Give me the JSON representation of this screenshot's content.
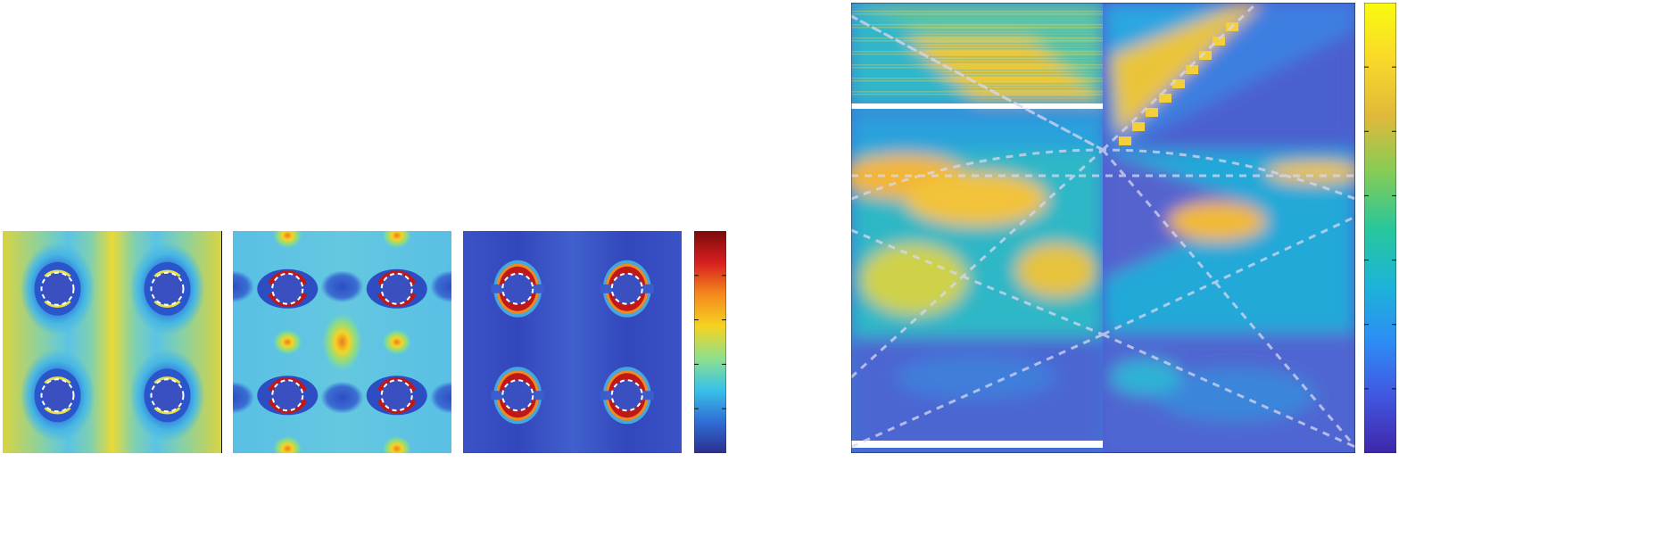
{
  "figure": {
    "field_maps": [
      {
        "id": "map-1",
        "hole_positions": [
          [
            0.25,
            0.25
          ],
          [
            0.75,
            0.25
          ],
          [
            0.25,
            0.75
          ],
          [
            0.75,
            0.75
          ]
        ]
      },
      {
        "id": "map-2",
        "hole_positions": [
          [
            0.25,
            0.25
          ],
          [
            0.75,
            0.25
          ],
          [
            0.25,
            0.75
          ],
          [
            0.75,
            0.75
          ]
        ]
      },
      {
        "id": "map-3",
        "hole_positions": [
          [
            0.25,
            0.25
          ],
          [
            0.75,
            0.25
          ],
          [
            0.25,
            0.75
          ],
          [
            0.75,
            0.75
          ]
        ]
      }
    ],
    "jet_colorbar": {
      "tick_count": 4,
      "colors": [
        "#2b2f8f",
        "#2f6fd6",
        "#38c2e8",
        "#8fe08a",
        "#f5d320",
        "#f58a1e",
        "#d81f1f",
        "#7a0b0b"
      ]
    },
    "parula_colorbar": {
      "tick_count": 6,
      "colors": [
        "#3e26a8",
        "#4256e0",
        "#2d8df5",
        "#1cb5d6",
        "#29c79a",
        "#86cc55",
        "#e1b93a",
        "#f9d92a",
        "#f9fb0e"
      ]
    },
    "colors": {
      "map1_background": "#e4d84a",
      "map2_background": "#5cc3e6",
      "map3_background": "#3d55c9",
      "hole_fill": "#3a4fc0",
      "hot_rim": "#c01818",
      "orange_rim": "#f08a20",
      "dash_white": "#ffffff"
    }
  }
}
